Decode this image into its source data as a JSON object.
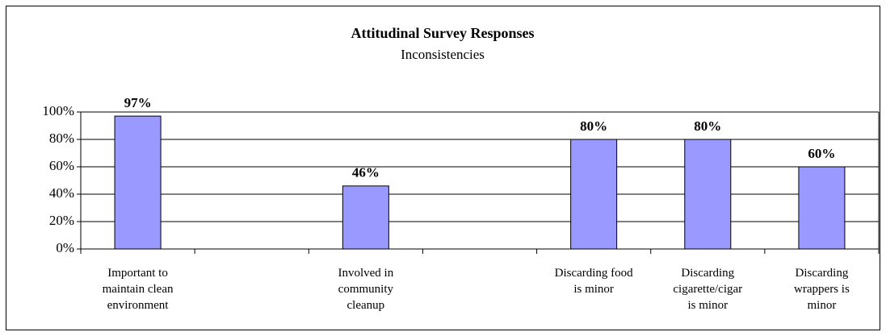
{
  "chart_data": {
    "type": "bar",
    "title": "Attitudinal Survey Responses",
    "subtitle": "Inconsistencies",
    "categories": [
      "Important to\nmaintain clean\nenvironment",
      null,
      "Involved in\ncommunity\ncleanup",
      null,
      "Discarding food\nis minor",
      "Discarding\ncigarette/cigar\nis minor",
      "Discarding\nwrappers is\nminor"
    ],
    "values": [
      97,
      null,
      46,
      null,
      80,
      80,
      60
    ],
    "value_labels": [
      "97%",
      null,
      "46%",
      null,
      "80%",
      "80%",
      "60%"
    ],
    "color": "#9999ff",
    "ylim": [
      0,
      100
    ],
    "yticks": [
      {
        "value": 0,
        "label": "0%"
      },
      {
        "value": 20,
        "label": "20%"
      },
      {
        "value": 40,
        "label": "40%"
      },
      {
        "value": 60,
        "label": "60%"
      },
      {
        "value": 80,
        "label": "80%"
      },
      {
        "value": 100,
        "label": "100%"
      }
    ],
    "grid": true
  }
}
